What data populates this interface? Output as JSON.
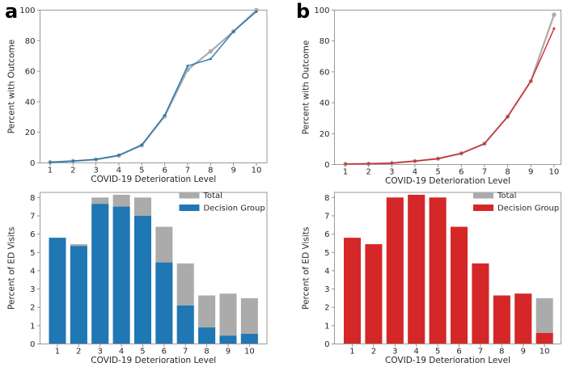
{
  "panels": {
    "a": "a",
    "b": "b"
  },
  "colors": {
    "blue": "#1f77b4",
    "red": "#d62728",
    "gray": "#ababab",
    "background": "#ffffff"
  },
  "chart_data": [
    {
      "id": "outcome-line-a",
      "type": "line",
      "panel": "a",
      "title": "",
      "xlabel": "COVID-19 Deterioration Level",
      "ylabel": "Percent with Outcome",
      "x": [
        1,
        2,
        3,
        4,
        5,
        6,
        7,
        8,
        9,
        10
      ],
      "xticks": [
        1,
        2,
        3,
        4,
        5,
        6,
        7,
        8,
        9,
        10
      ],
      "yticks": [
        0,
        20,
        40,
        60,
        80,
        100
      ],
      "xlim": [
        0.56,
        10.46
      ],
      "ylim": [
        0,
        100
      ],
      "grid": false,
      "legend": null,
      "series": [
        {
          "name": "Total",
          "color": "#ababab",
          "lw": 2.2,
          "ms": 2.7,
          "values": [
            0.4,
            1.2,
            2.2,
            4.8,
            11.5,
            30.5,
            61.0,
            73.0,
            86.0,
            100.0
          ]
        },
        {
          "name": "Decision Group",
          "color": "#1f77b4",
          "lw": 1.4,
          "ms": 1.5,
          "values": [
            0.4,
            1.2,
            2.3,
            5.0,
            11.8,
            31.2,
            63.5,
            68.0,
            86.0,
            99.0
          ]
        }
      ]
    },
    {
      "id": "outcome-line-b",
      "type": "line",
      "panel": "b",
      "title": "",
      "xlabel": "COVID-19 Deterioration Level",
      "ylabel": "Percent with Outcome",
      "x": [
        1,
        2,
        3,
        4,
        5,
        6,
        7,
        8,
        9,
        10
      ],
      "xticks": [
        1,
        2,
        3,
        4,
        5,
        6,
        7,
        8,
        9,
        10
      ],
      "yticks": [
        0,
        20,
        40,
        60,
        80,
        100
      ],
      "xlim": [
        0.53,
        10.3
      ],
      "ylim": [
        0,
        100
      ],
      "grid": false,
      "legend": null,
      "series": [
        {
          "name": "Total",
          "color": "#ababab",
          "lw": 2.2,
          "ms": 2.7,
          "values": [
            0.3,
            0.5,
            0.9,
            2.2,
            3.8,
            7.2,
            13.5,
            31.0,
            54.0,
            97.0
          ]
        },
        {
          "name": "Decision Group",
          "color": "#d62728",
          "lw": 1.4,
          "ms": 1.5,
          "values": [
            0.3,
            0.5,
            0.9,
            2.2,
            3.8,
            7.2,
            13.5,
            31.0,
            54.0,
            88.0
          ]
        }
      ]
    },
    {
      "id": "ed-visits-bars-a",
      "type": "bar",
      "panel": "a",
      "title": "",
      "xlabel": "COVID-19 Deterioration Level",
      "ylabel": "Percent of ED Visits",
      "categories": [
        1,
        2,
        3,
        4,
        5,
        6,
        7,
        8,
        9,
        10
      ],
      "yticks": [
        0,
        1,
        2,
        3,
        4,
        5,
        6,
        7,
        8
      ],
      "xlim": [
        0.185,
        10.82
      ],
      "ylim": [
        0,
        8.28
      ],
      "grid": false,
      "legend": {
        "position": "upper right",
        "entries": [
          "Total",
          "Decision Group"
        ]
      },
      "series": [
        {
          "name": "Total",
          "color": "#ababab",
          "values": [
            5.8,
            5.45,
            8.0,
            8.15,
            8.0,
            6.4,
            4.4,
            2.65,
            2.75,
            2.5
          ]
        },
        {
          "name": "Decision Group",
          "color": "#1f77b4",
          "values": [
            5.8,
            5.35,
            7.65,
            7.5,
            7.0,
            4.45,
            2.1,
            0.9,
            0.45,
            0.55
          ]
        }
      ]
    },
    {
      "id": "ed-visits-bars-b",
      "type": "bar",
      "panel": "b",
      "title": "",
      "xlabel": "COVID-19 Deterioration Level",
      "ylabel": "Percent of ED Visits",
      "categories": [
        1,
        2,
        3,
        4,
        5,
        6,
        7,
        8,
        9,
        10
      ],
      "yticks": [
        0,
        1,
        2,
        3,
        4,
        5,
        6,
        7,
        8
      ],
      "xlim": [
        0.167,
        10.77
      ],
      "ylim": [
        0,
        8.28
      ],
      "grid": false,
      "legend": {
        "position": "upper right",
        "entries": [
          "Total",
          "Decision Group"
        ]
      },
      "series": [
        {
          "name": "Total",
          "color": "#ababab",
          "values": [
            5.8,
            5.45,
            8.0,
            8.15,
            8.0,
            6.4,
            4.4,
            2.65,
            2.75,
            2.5
          ]
        },
        {
          "name": "Decision Group",
          "color": "#d62728",
          "values": [
            5.8,
            5.45,
            8.0,
            8.15,
            8.0,
            6.4,
            4.4,
            2.65,
            2.75,
            0.6
          ]
        }
      ]
    }
  ]
}
